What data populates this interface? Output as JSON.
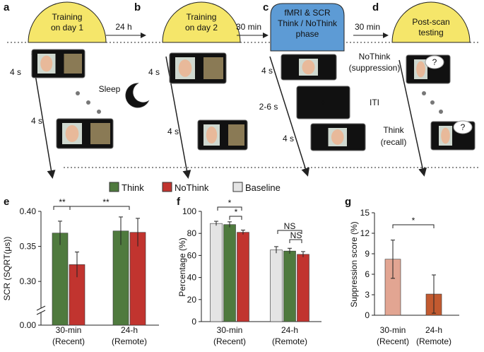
{
  "panel_labels": [
    "a",
    "b",
    "c",
    "d",
    "e",
    "f",
    "g"
  ],
  "diagram": {
    "stage_a": [
      "Training",
      "on day 1"
    ],
    "gap_ab": "24 h",
    "stage_b": [
      "Training",
      "on day 2"
    ],
    "gap_bc": "30 min",
    "stage_c": [
      "fMRI & SCR",
      "Think / NoThink",
      "phase"
    ],
    "gap_cd": "30 min",
    "stage_d": [
      "Post-scan",
      "testing"
    ],
    "sleep": "Sleep",
    "a_durations": [
      "4 s",
      "4 s"
    ],
    "b_durations": [
      "4 s",
      "4 s"
    ],
    "c_durations": [
      "4 s",
      "2-6 s",
      "4 s"
    ],
    "c_events": [
      [
        "NoThink",
        "(suppression)"
      ],
      [
        "ITI"
      ],
      [
        "Think",
        "(recall)"
      ]
    ],
    "fixation": "+"
  },
  "legend": [
    {
      "name": "Think",
      "color": "#4f7a3e"
    },
    {
      "name": "NoThink",
      "color": "#c1342f"
    },
    {
      "name": "Baseline",
      "color": "#e4e4e4"
    }
  ],
  "chart_data": [
    {
      "type": "bar",
      "ylabel": "SCR (SQRT(μs))",
      "categories": [
        "30-min (Recent)",
        "24-h (Remote)"
      ],
      "series": [
        {
          "color": "#4f7a3e",
          "values": [
            0.369,
            0.372
          ],
          "errors": [
            0.017,
            0.02
          ]
        },
        {
          "color": "#c1342f",
          "values": [
            0.324,
            0.37
          ],
          "errors": [
            0.018,
            0.02
          ]
        }
      ],
      "ylim": [
        0.28,
        0.4
      ],
      "axis_break": true,
      "yticks": [
        {
          "value": 0,
          "label": "0.00"
        },
        {
          "value": 0.3,
          "label": "0.30"
        },
        {
          "value": 0.35,
          "label": "0.35"
        },
        {
          "value": 0.4,
          "label": "0.40"
        }
      ],
      "annotations": [
        "**",
        "**"
      ]
    },
    {
      "type": "bar",
      "ylabel": "Percentage (%)",
      "categories": [
        "30-min (Recent)",
        "24-h (Remote)"
      ],
      "series": [
        {
          "color": "#e4e4e4",
          "values": [
            89,
            65
          ],
          "errors": [
            2,
            3
          ]
        },
        {
          "color": "#4f7a3e",
          "values": [
            88,
            64
          ],
          "errors": [
            2.5,
            2.5
          ]
        },
        {
          "color": "#c1342f",
          "values": [
            81,
            61
          ],
          "errors": [
            2,
            2.5
          ]
        }
      ],
      "ylim": [
        0,
        100
      ],
      "yticks": [
        0,
        20,
        40,
        60,
        80,
        100
      ],
      "annotations": [
        "*",
        "*",
        "NS",
        "NS"
      ]
    },
    {
      "type": "bar",
      "ylabel": "Suppression score (%)",
      "categories": [
        "30-min (Recent)",
        "24-h (Remote)"
      ],
      "values": [
        8.2,
        3.1
      ],
      "errors": [
        2.8,
        2.8
      ],
      "colors": [
        "#e2a592",
        "#c25a30"
      ],
      "ylim": [
        0,
        15
      ],
      "yticks": [
        0,
        3,
        6,
        9,
        12,
        15
      ],
      "annotations": [
        "*"
      ]
    }
  ]
}
